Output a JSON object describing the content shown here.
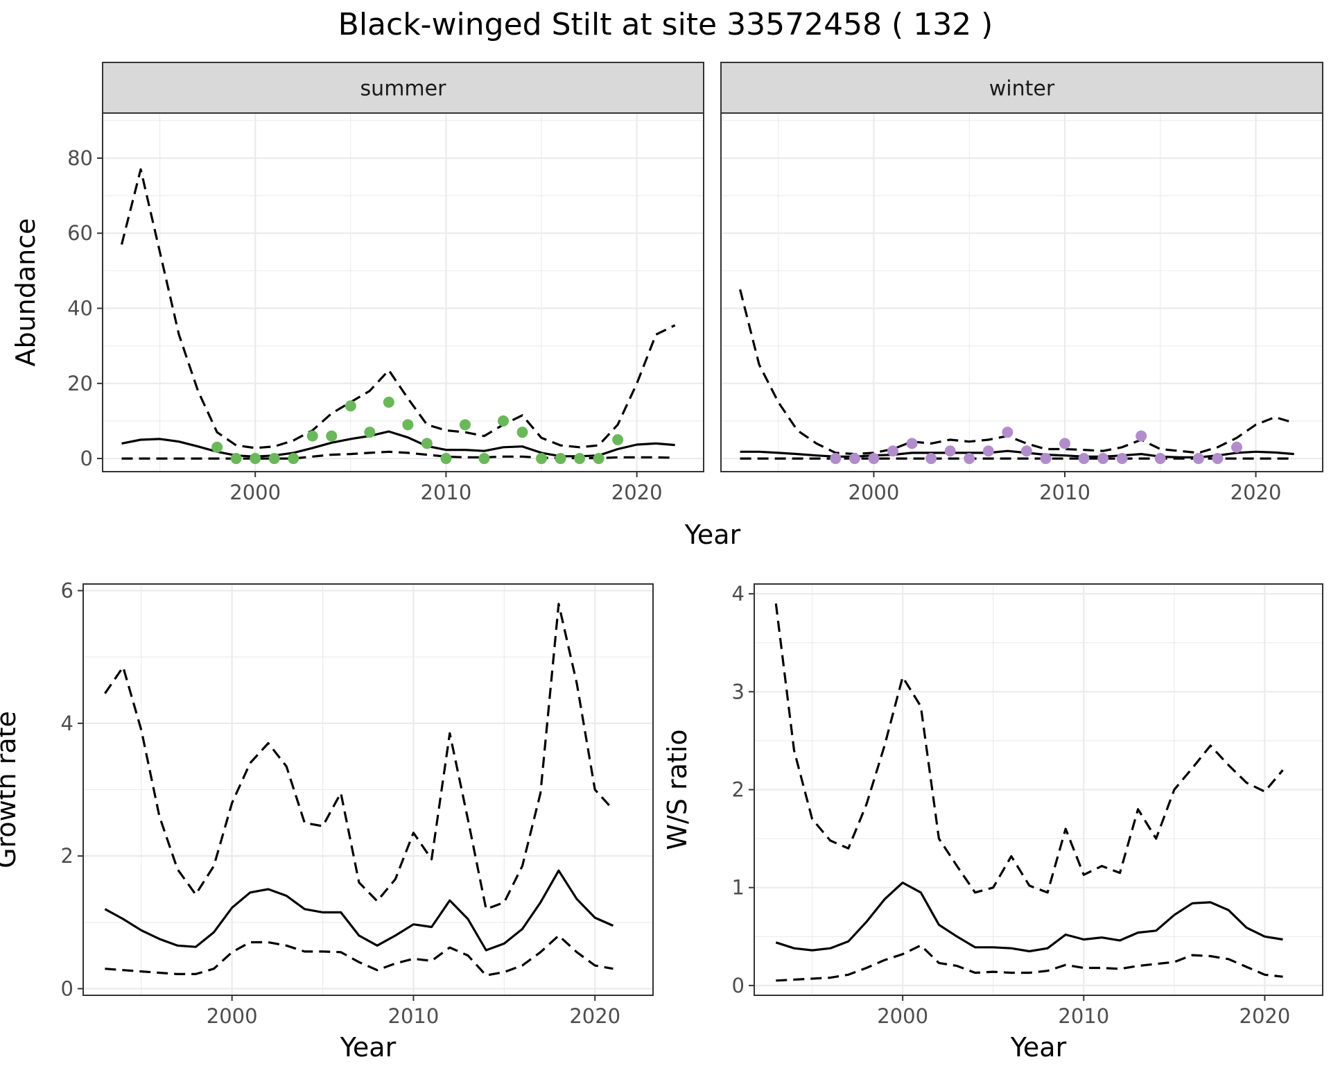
{
  "title": "Black-winged Stilt at site 33572458 ( 132 )",
  "colors": {
    "summer_points": "#6ab85a",
    "winter_points": "#b28dcc",
    "lines": "#000000",
    "strip": "#d9d9d9"
  },
  "chart_data": [
    {
      "type": "line",
      "panel": "summer",
      "facet_label": "summer",
      "xlabel": "Year",
      "ylabel": "Abundance",
      "xlim": [
        1992,
        2023.5
      ],
      "ylim": [
        -3.5,
        92
      ],
      "xticks": [
        2000,
        2010,
        2020
      ],
      "yticks": [
        0,
        20,
        40,
        60,
        80
      ],
      "grid": true,
      "x": [
        1993,
        1994,
        1995,
        1996,
        1997,
        1998,
        1999,
        2000,
        2001,
        2002,
        2003,
        2004,
        2005,
        2006,
        2007,
        2008,
        2009,
        2010,
        2011,
        2012,
        2013,
        2014,
        2015,
        2016,
        2017,
        2018,
        2019,
        2020,
        2021,
        2022
      ],
      "series": [
        {
          "role": "mean",
          "values": [
            4,
            5,
            5.2,
            4.5,
            3.2,
            1.8,
            0.8,
            0.5,
            0.8,
            1.5,
            2.8,
            4.2,
            5.2,
            6,
            7.2,
            5.6,
            3.3,
            2.3,
            2.3,
            2,
            3,
            3.2,
            1.5,
            0.6,
            0.6,
            0.8,
            2.5,
            3.7,
            4,
            3.6
          ]
        },
        {
          "role": "upper",
          "values": [
            57,
            77,
            55,
            33,
            18,
            7,
            3.5,
            2.8,
            3.2,
            4.8,
            7.5,
            12,
            15,
            18,
            23.5,
            16,
            9,
            7.5,
            7,
            6,
            9,
            11.5,
            5.5,
            3.5,
            3,
            3.5,
            9,
            20,
            33,
            35.5
          ]
        },
        {
          "role": "lower",
          "values": [
            0,
            0,
            0,
            0,
            0,
            0,
            0,
            0,
            0,
            0,
            0.5,
            1,
            1.2,
            1.5,
            1.8,
            1.5,
            1,
            0.5,
            0.3,
            0.3,
            0.5,
            0.5,
            0.2,
            0.1,
            0.1,
            0.1,
            0.3,
            0.3,
            0.3,
            0.2
          ]
        },
        {
          "role": "observed",
          "x": [
            1998,
            1999,
            2000,
            2001,
            2002,
            2003,
            2004,
            2005,
            2006,
            2007,
            2008,
            2009,
            2010,
            2011,
            2012,
            2013,
            2014,
            2015,
            2016,
            2017,
            2018,
            2019
          ],
          "values": [
            3,
            0,
            0,
            0,
            0,
            6,
            6,
            14,
            7,
            15,
            9,
            4,
            0,
            9,
            0,
            10,
            7,
            0,
            0,
            0,
            0,
            5
          ]
        }
      ]
    },
    {
      "type": "line",
      "panel": "winter",
      "facet_label": "winter",
      "xlabel": "Year",
      "ylabel": "",
      "xlim": [
        1992,
        2023.5
      ],
      "ylim": [
        -3.5,
        92
      ],
      "xticks": [
        2000,
        2010,
        2020
      ],
      "yticks": [
        0,
        20,
        40,
        60,
        80
      ],
      "grid": true,
      "x": [
        1993,
        1994,
        1995,
        1996,
        1997,
        1998,
        1999,
        2000,
        2001,
        2002,
        2003,
        2004,
        2005,
        2006,
        2007,
        2008,
        2009,
        2010,
        2011,
        2012,
        2013,
        2014,
        2015,
        2016,
        2017,
        2018,
        2019,
        2020,
        2021,
        2022
      ],
      "series": [
        {
          "role": "mean",
          "values": [
            1.8,
            1.8,
            1.5,
            1.2,
            0.8,
            0.5,
            0.5,
            0.8,
            1,
            1.5,
            1.5,
            1.5,
            1.5,
            1.5,
            2,
            1.5,
            1,
            0.8,
            0.5,
            0.5,
            0.8,
            1.2,
            0.5,
            0.3,
            0.3,
            0.8,
            1.5,
            1.8,
            1.6,
            1.2
          ]
        },
        {
          "role": "upper",
          "values": [
            45,
            25,
            15,
            7.5,
            4,
            1.5,
            1.2,
            1.5,
            2.5,
            4.5,
            4,
            5,
            4.5,
            5,
            6,
            4,
            2.5,
            2.5,
            2.3,
            2,
            3,
            5,
            2.5,
            2,
            1.5,
            3,
            5.5,
            9,
            11,
            9.5
          ]
        },
        {
          "role": "lower",
          "values": [
            0,
            0,
            0,
            0,
            0,
            0,
            0,
            0,
            0,
            0,
            0,
            0,
            0,
            0,
            0,
            0,
            0,
            0,
            0,
            0,
            0,
            0,
            0,
            0,
            0,
            0,
            0,
            0,
            0,
            0
          ]
        },
        {
          "role": "observed",
          "x": [
            1998,
            1999,
            2000,
            2001,
            2002,
            2003,
            2004,
            2005,
            2006,
            2007,
            2008,
            2009,
            2010,
            2011,
            2012,
            2013,
            2014,
            2015,
            2017,
            2018,
            2019
          ],
          "values": [
            0,
            0,
            0,
            2,
            4,
            0,
            2,
            0,
            2,
            7,
            2,
            0,
            4,
            0,
            0,
            0,
            6,
            0,
            0,
            0,
            3
          ]
        }
      ]
    },
    {
      "type": "line",
      "panel": "growth",
      "xlabel": "Year",
      "ylabel": "Growth rate",
      "xlim": [
        1991.8,
        2023.2
      ],
      "ylim": [
        -0.1,
        6.1
      ],
      "xticks": [
        2000,
        2010,
        2020
      ],
      "yticks": [
        0,
        2,
        4,
        6
      ],
      "grid": true,
      "x": [
        1993,
        1994,
        1995,
        1996,
        1997,
        1998,
        1999,
        2000,
        2001,
        2002,
        2003,
        2004,
        2005,
        2006,
        2007,
        2008,
        2009,
        2010,
        2011,
        2012,
        2013,
        2014,
        2015,
        2016,
        2017,
        2018,
        2019,
        2020,
        2021
      ],
      "series": [
        {
          "role": "mean",
          "values": [
            1.2,
            1.05,
            0.88,
            0.75,
            0.65,
            0.63,
            0.85,
            1.22,
            1.45,
            1.5,
            1.4,
            1.2,
            1.15,
            1.15,
            0.8,
            0.65,
            0.8,
            0.97,
            0.93,
            1.33,
            1.05,
            0.58,
            0.68,
            0.9,
            1.3,
            1.78,
            1.35,
            1.07,
            0.95
          ]
        },
        {
          "role": "upper",
          "values": [
            4.45,
            4.85,
            3.9,
            2.6,
            1.8,
            1.42,
            1.85,
            2.8,
            3.4,
            3.7,
            3.35,
            2.5,
            2.45,
            2.95,
            1.6,
            1.32,
            1.65,
            2.35,
            1.95,
            3.85,
            2.55,
            1.2,
            1.3,
            1.85,
            2.95,
            5.8,
            4.6,
            3,
            2.7
          ]
        },
        {
          "role": "lower",
          "values": [
            0.3,
            0.28,
            0.26,
            0.24,
            0.22,
            0.22,
            0.3,
            0.55,
            0.7,
            0.7,
            0.65,
            0.56,
            0.56,
            0.55,
            0.4,
            0.28,
            0.38,
            0.45,
            0.42,
            0.62,
            0.5,
            0.2,
            0.25,
            0.35,
            0.55,
            0.8,
            0.55,
            0.35,
            0.3
          ]
        }
      ]
    },
    {
      "type": "line",
      "panel": "ratio",
      "xlabel": "Year",
      "ylabel": "W/S ratio",
      "xlim": [
        1991.8,
        2023.2
      ],
      "ylim": [
        -0.1,
        4.1
      ],
      "xticks": [
        2000,
        2010,
        2020
      ],
      "yticks": [
        0,
        1,
        2,
        3,
        4
      ],
      "grid": true,
      "x": [
        1993,
        1994,
        1995,
        1996,
        1997,
        1998,
        1999,
        2000,
        2001,
        2002,
        2003,
        2004,
        2005,
        2006,
        2007,
        2008,
        2009,
        2010,
        2011,
        2012,
        2013,
        2014,
        2015,
        2016,
        2017,
        2018,
        2019,
        2020,
        2021
      ],
      "series": [
        {
          "role": "mean",
          "values": [
            0.44,
            0.38,
            0.36,
            0.38,
            0.45,
            0.65,
            0.88,
            1.05,
            0.95,
            0.62,
            0.5,
            0.39,
            0.39,
            0.38,
            0.35,
            0.38,
            0.52,
            0.47,
            0.49,
            0.46,
            0.54,
            0.56,
            0.72,
            0.84,
            0.85,
            0.77,
            0.59,
            0.5,
            0.47
          ]
        },
        {
          "role": "upper",
          "values": [
            3.9,
            2.4,
            1.7,
            1.48,
            1.4,
            1.85,
            2.45,
            3.15,
            2.85,
            1.5,
            1.22,
            0.95,
            1.0,
            1.32,
            1.02,
            0.95,
            1.6,
            1.13,
            1.22,
            1.15,
            1.8,
            1.5,
            2.0,
            2.22,
            2.45,
            2.25,
            2.07,
            1.98,
            2.2
          ]
        },
        {
          "role": "lower",
          "values": [
            0.05,
            0.06,
            0.07,
            0.08,
            0.11,
            0.18,
            0.26,
            0.32,
            0.41,
            0.23,
            0.2,
            0.13,
            0.14,
            0.13,
            0.13,
            0.15,
            0.21,
            0.18,
            0.18,
            0.17,
            0.2,
            0.22,
            0.24,
            0.31,
            0.3,
            0.27,
            0.19,
            0.11,
            0.09
          ]
        }
      ]
    }
  ]
}
